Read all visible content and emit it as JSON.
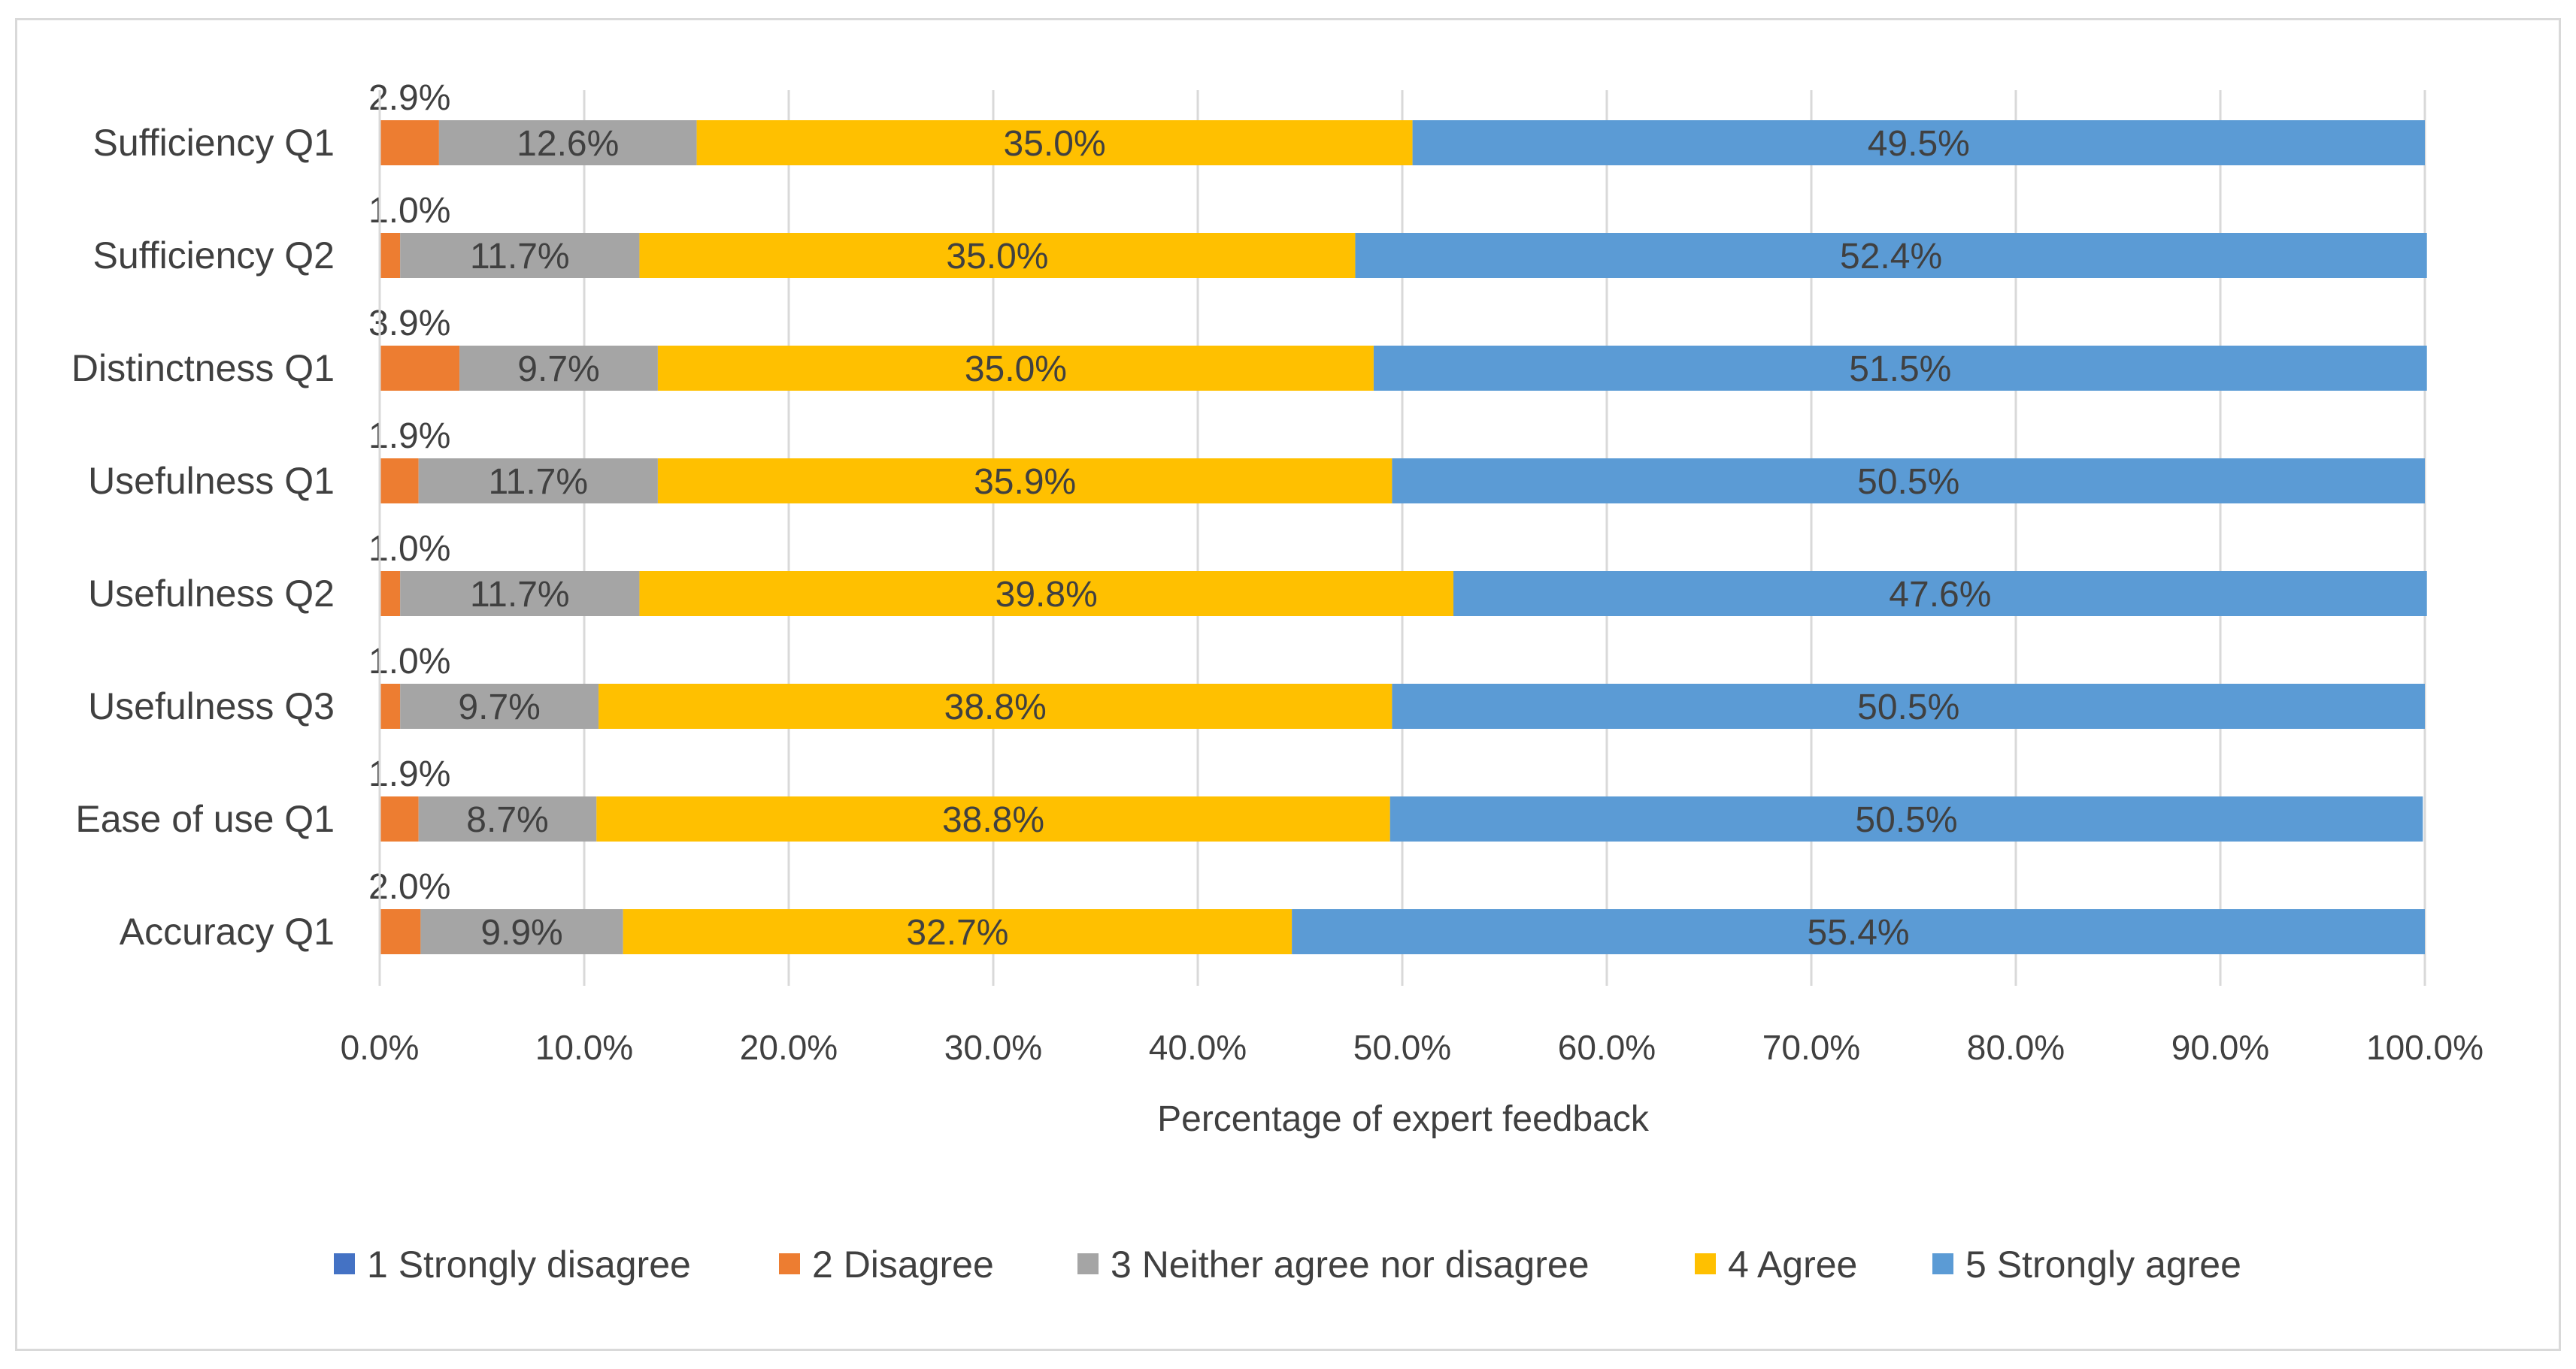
{
  "chart_data": {
    "type": "bar",
    "orientation": "horizontal",
    "stacked": true,
    "title": "",
    "xlabel": "Percentage of expert feedback",
    "ylabel": "",
    "xlim": [
      0,
      100
    ],
    "x_ticks": [
      "0.0%",
      "10.0%",
      "20.0%",
      "30.0%",
      "40.0%",
      "50.0%",
      "60.0%",
      "70.0%",
      "80.0%",
      "90.0%",
      "100.0%"
    ],
    "grid": "vertical",
    "legend_position": "bottom",
    "categories": [
      "Sufficiency Q1",
      "Sufficiency Q2",
      "Distinctness Q1",
      "Usefulness Q1",
      "Usefulness Q2",
      "Usefulness Q3",
      "Ease of use Q1",
      "Accuracy Q1"
    ],
    "series": [
      {
        "name": "1 Strongly disagree",
        "color": "#4472c4",
        "values": [
          0,
          0,
          0,
          0,
          0,
          0,
          0,
          0
        ],
        "labels": [
          "",
          "",
          "",
          "",
          "",
          "",
          "",
          ""
        ]
      },
      {
        "name": "2 Disagree",
        "color": "#ed7d31",
        "values": [
          2.9,
          1.0,
          3.9,
          1.9,
          1.0,
          1.0,
          1.9,
          2.0
        ],
        "labels": [
          "2.9%",
          "1.0%",
          "3.9%",
          "1.9%",
          "1.0%",
          "1.0%",
          "1.9%",
          "2.0%"
        ]
      },
      {
        "name": "3 Neither agree nor disagree",
        "color": "#a5a5a5",
        "values": [
          12.6,
          11.7,
          9.7,
          11.7,
          11.7,
          9.7,
          8.7,
          9.9
        ],
        "labels": [
          "12.6%",
          "11.7%",
          "9.7%",
          "11.7%",
          "11.7%",
          "9.7%",
          "8.7%",
          "9.9%"
        ]
      },
      {
        "name": "4 Agree",
        "color": "#ffc000",
        "values": [
          35.0,
          35.0,
          35.0,
          35.9,
          39.8,
          38.8,
          38.8,
          32.7
        ],
        "labels": [
          "35.0%",
          "35.0%",
          "35.0%",
          "35.9%",
          "39.8%",
          "38.8%",
          "38.8%",
          "32.7%"
        ]
      },
      {
        "name": "5 Strongly agree",
        "color": "#5b9bd5",
        "values": [
          49.5,
          52.4,
          51.5,
          50.5,
          47.6,
          50.5,
          50.5,
          55.4
        ],
        "labels": [
          "49.5%",
          "52.4%",
          "51.5%",
          "50.5%",
          "47.6%",
          "50.5%",
          "50.5%",
          "55.4%"
        ]
      }
    ]
  }
}
